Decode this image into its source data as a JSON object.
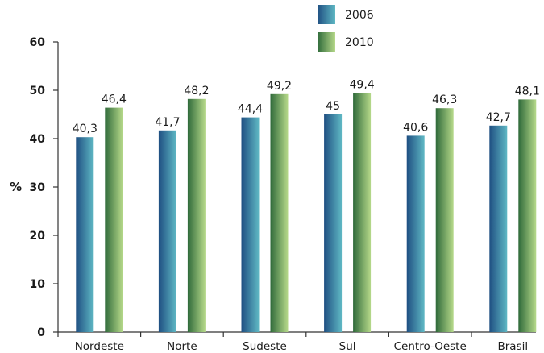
{
  "chart_data": {
    "type": "bar",
    "categories": [
      "Nordeste",
      "Norte",
      "Sudeste",
      "Sul",
      "Centro-Oeste",
      "Brasil"
    ],
    "series": [
      {
        "name": "2006",
        "values": [
          40.3,
          41.7,
          44.4,
          45,
          40.6,
          42.7
        ],
        "labels": [
          "40,3",
          "41,7",
          "44,4",
          "45",
          "40,6",
          "42,7"
        ]
      },
      {
        "name": "2010",
        "values": [
          46.4,
          48.2,
          49.2,
          49.4,
          46.3,
          48.1
        ],
        "labels": [
          "46,4",
          "48,2",
          "49,2",
          "49,4",
          "46,3",
          "48,1"
        ]
      }
    ],
    "ylabel": "%",
    "ylim": [
      0,
      60
    ],
    "yticks": [
      "0",
      "10",
      "20",
      "30",
      "40",
      "50",
      "60"
    ],
    "grid": false,
    "legend_position": "top-right",
    "colors": {
      "2006": {
        "light": "#5fb8c4",
        "dark": "#1f4f82"
      },
      "2010": {
        "light": "#b6d98a",
        "dark": "#2f6a3a"
      }
    }
  }
}
